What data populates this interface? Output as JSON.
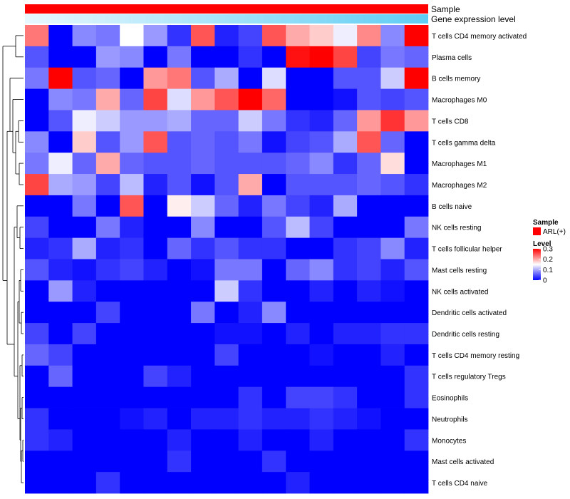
{
  "chart_data": {
    "type": "heatmap",
    "annotations": {
      "sample_label": "Sample",
      "expression_label": "Gene expression level",
      "sample_color": "#ff0000",
      "expression_gradient": [
        "#e8f8fe",
        "#5fcdf4"
      ]
    },
    "rows": [
      "T cells CD4 memory activated",
      "Plasma cells",
      "B cells memory",
      "Macrophages M0",
      "T cells CD8",
      "T cells gamma delta",
      "Macrophages M1",
      "Macrophages M2",
      "B cells naive",
      "NK cells resting",
      "T cells follicular helper",
      "Mast cells resting",
      "NK cells activated",
      "Dendritic cells activated",
      "Dendritic cells resting",
      "T cells CD4 memory resting",
      "T cells regulatory  Tregs",
      "Eosinophils",
      "Neutrophils",
      "Monocytes",
      "Mast cells activated",
      "T cells CD4 naive"
    ],
    "values": [
      [
        0.23,
        0.0,
        0.08,
        0.07,
        0.15,
        0.09,
        0.03,
        0.25,
        0.02,
        0.04,
        0.25,
        0.2,
        0.18,
        0.14,
        0.22,
        0.08,
        0.3
      ],
      [
        0.05,
        0.0,
        0.0,
        0.09,
        0.08,
        0.0,
        0.07,
        0.0,
        0.0,
        0.03,
        0.0,
        0.29,
        0.3,
        0.26,
        0.04,
        0.07,
        0.06
      ],
      [
        0.07,
        0.3,
        0.05,
        0.06,
        0.0,
        0.21,
        0.23,
        0.05,
        0.1,
        0.0,
        0.13,
        0.0,
        0.0,
        0.05,
        0.05,
        0.12,
        0.3
      ],
      [
        0.0,
        0.08,
        0.07,
        0.2,
        0.06,
        0.26,
        0.13,
        0.21,
        0.25,
        0.3,
        0.24,
        0.0,
        0.0,
        0.01,
        0.05,
        0.04,
        0.05
      ],
      [
        0.0,
        0.05,
        0.14,
        0.12,
        0.09,
        0.09,
        0.1,
        0.06,
        0.06,
        0.12,
        0.07,
        0.03,
        0.02,
        0.06,
        0.21,
        0.27,
        0.21
      ],
      [
        0.08,
        0.0,
        0.18,
        0.05,
        0.09,
        0.25,
        0.05,
        0.06,
        0.05,
        0.07,
        0.01,
        0.04,
        0.05,
        0.1,
        0.25,
        0.06,
        0.0
      ],
      [
        0.07,
        0.14,
        0.06,
        0.2,
        0.06,
        0.05,
        0.05,
        0.06,
        0.05,
        0.05,
        0.05,
        0.06,
        0.08,
        0.03,
        0.06,
        0.17,
        0.0
      ],
      [
        0.26,
        0.1,
        0.09,
        0.04,
        0.11,
        0.02,
        0.05,
        0.01,
        0.05,
        0.2,
        0.0,
        0.05,
        0.05,
        0.05,
        0.06,
        0.05,
        0.03
      ],
      [
        0.0,
        0.0,
        0.07,
        0.0,
        0.25,
        0.0,
        0.16,
        0.12,
        0.06,
        0.02,
        0.07,
        0.04,
        0.02,
        0.1,
        0.0,
        0.0,
        0.0
      ],
      [
        0.04,
        0.0,
        0.0,
        0.07,
        0.02,
        0.0,
        0.0,
        0.08,
        0.0,
        0.0,
        0.05,
        0.11,
        0.04,
        0.0,
        0.0,
        0.0,
        0.07
      ],
      [
        0.02,
        0.03,
        0.1,
        0.02,
        0.03,
        0.0,
        0.06,
        0.03,
        0.05,
        0.03,
        0.03,
        0.0,
        0.0,
        0.03,
        0.04,
        0.08,
        0.02
      ],
      [
        0.05,
        0.02,
        0.01,
        0.03,
        0.04,
        0.02,
        0.0,
        0.01,
        0.07,
        0.07,
        0.0,
        0.06,
        0.08,
        0.03,
        0.04,
        0.02,
        0.05
      ],
      [
        0.0,
        0.09,
        0.02,
        0.0,
        0.0,
        0.0,
        0.0,
        0.0,
        0.12,
        0.03,
        0.0,
        0.0,
        0.02,
        0.0,
        0.02,
        0.01,
        0.0
      ],
      [
        0.0,
        0.0,
        0.0,
        0.04,
        0.0,
        0.0,
        0.0,
        0.07,
        0.0,
        0.02,
        0.08,
        0.0,
        0.0,
        0.0,
        0.0,
        0.0,
        0.0
      ],
      [
        0.04,
        0.0,
        0.04,
        0.0,
        0.0,
        0.0,
        0.0,
        0.0,
        0.01,
        0.01,
        0.0,
        0.02,
        0.0,
        0.02,
        0.02,
        0.03,
        0.03
      ],
      [
        0.06,
        0.04,
        0.0,
        0.0,
        0.0,
        0.0,
        0.0,
        0.0,
        0.04,
        0.0,
        0.0,
        0.0,
        0.01,
        0.0,
        0.0,
        0.02,
        0.0
      ],
      [
        0.0,
        0.06,
        0.0,
        0.0,
        0.0,
        0.04,
        0.02,
        0.0,
        0.0,
        0.0,
        0.0,
        0.0,
        0.0,
        0.0,
        0.0,
        0.0,
        0.03
      ],
      [
        0.0,
        0.0,
        0.0,
        0.0,
        0.0,
        0.0,
        0.0,
        0.0,
        0.0,
        0.03,
        0.0,
        0.04,
        0.04,
        0.03,
        0.0,
        0.0,
        0.03
      ],
      [
        0.03,
        0.0,
        0.0,
        0.0,
        0.01,
        0.02,
        0.0,
        0.02,
        0.02,
        0.03,
        0.02,
        0.02,
        0.03,
        0.02,
        0.01,
        0.0,
        0.0
      ],
      [
        0.03,
        0.02,
        0.0,
        0.0,
        0.0,
        0.0,
        0.02,
        0.0,
        0.0,
        0.02,
        0.0,
        0.0,
        0.02,
        0.0,
        0.0,
        0.0,
        0.03
      ],
      [
        0.0,
        0.0,
        0.0,
        0.0,
        0.0,
        0.0,
        0.03,
        0.0,
        0.0,
        0.0,
        0.03,
        0.0,
        0.0,
        0.0,
        0.0,
        0.0,
        0.0
      ],
      [
        0.0,
        0.0,
        0.0,
        0.03,
        0.0,
        0.0,
        0.0,
        0.0,
        0.0,
        0.0,
        0.0,
        0.02,
        0.0,
        0.0,
        0.0,
        0.0,
        0.0
      ]
    ],
    "color_scale": {
      "min": 0,
      "mid": 0.15,
      "max": 0.3,
      "colors": [
        "#0000ff",
        "#ffffff",
        "#ff0000"
      ]
    },
    "legend": {
      "sample_title": "Sample",
      "sample_entry": "ARL(+)",
      "level_title": "Level",
      "ticks": [
        "0.3",
        "0.2",
        "0.1",
        "0"
      ],
      "tick_values": [
        0.3,
        0.2,
        0.1,
        0
      ],
      "placement": "right"
    },
    "dendrogram": "left"
  }
}
